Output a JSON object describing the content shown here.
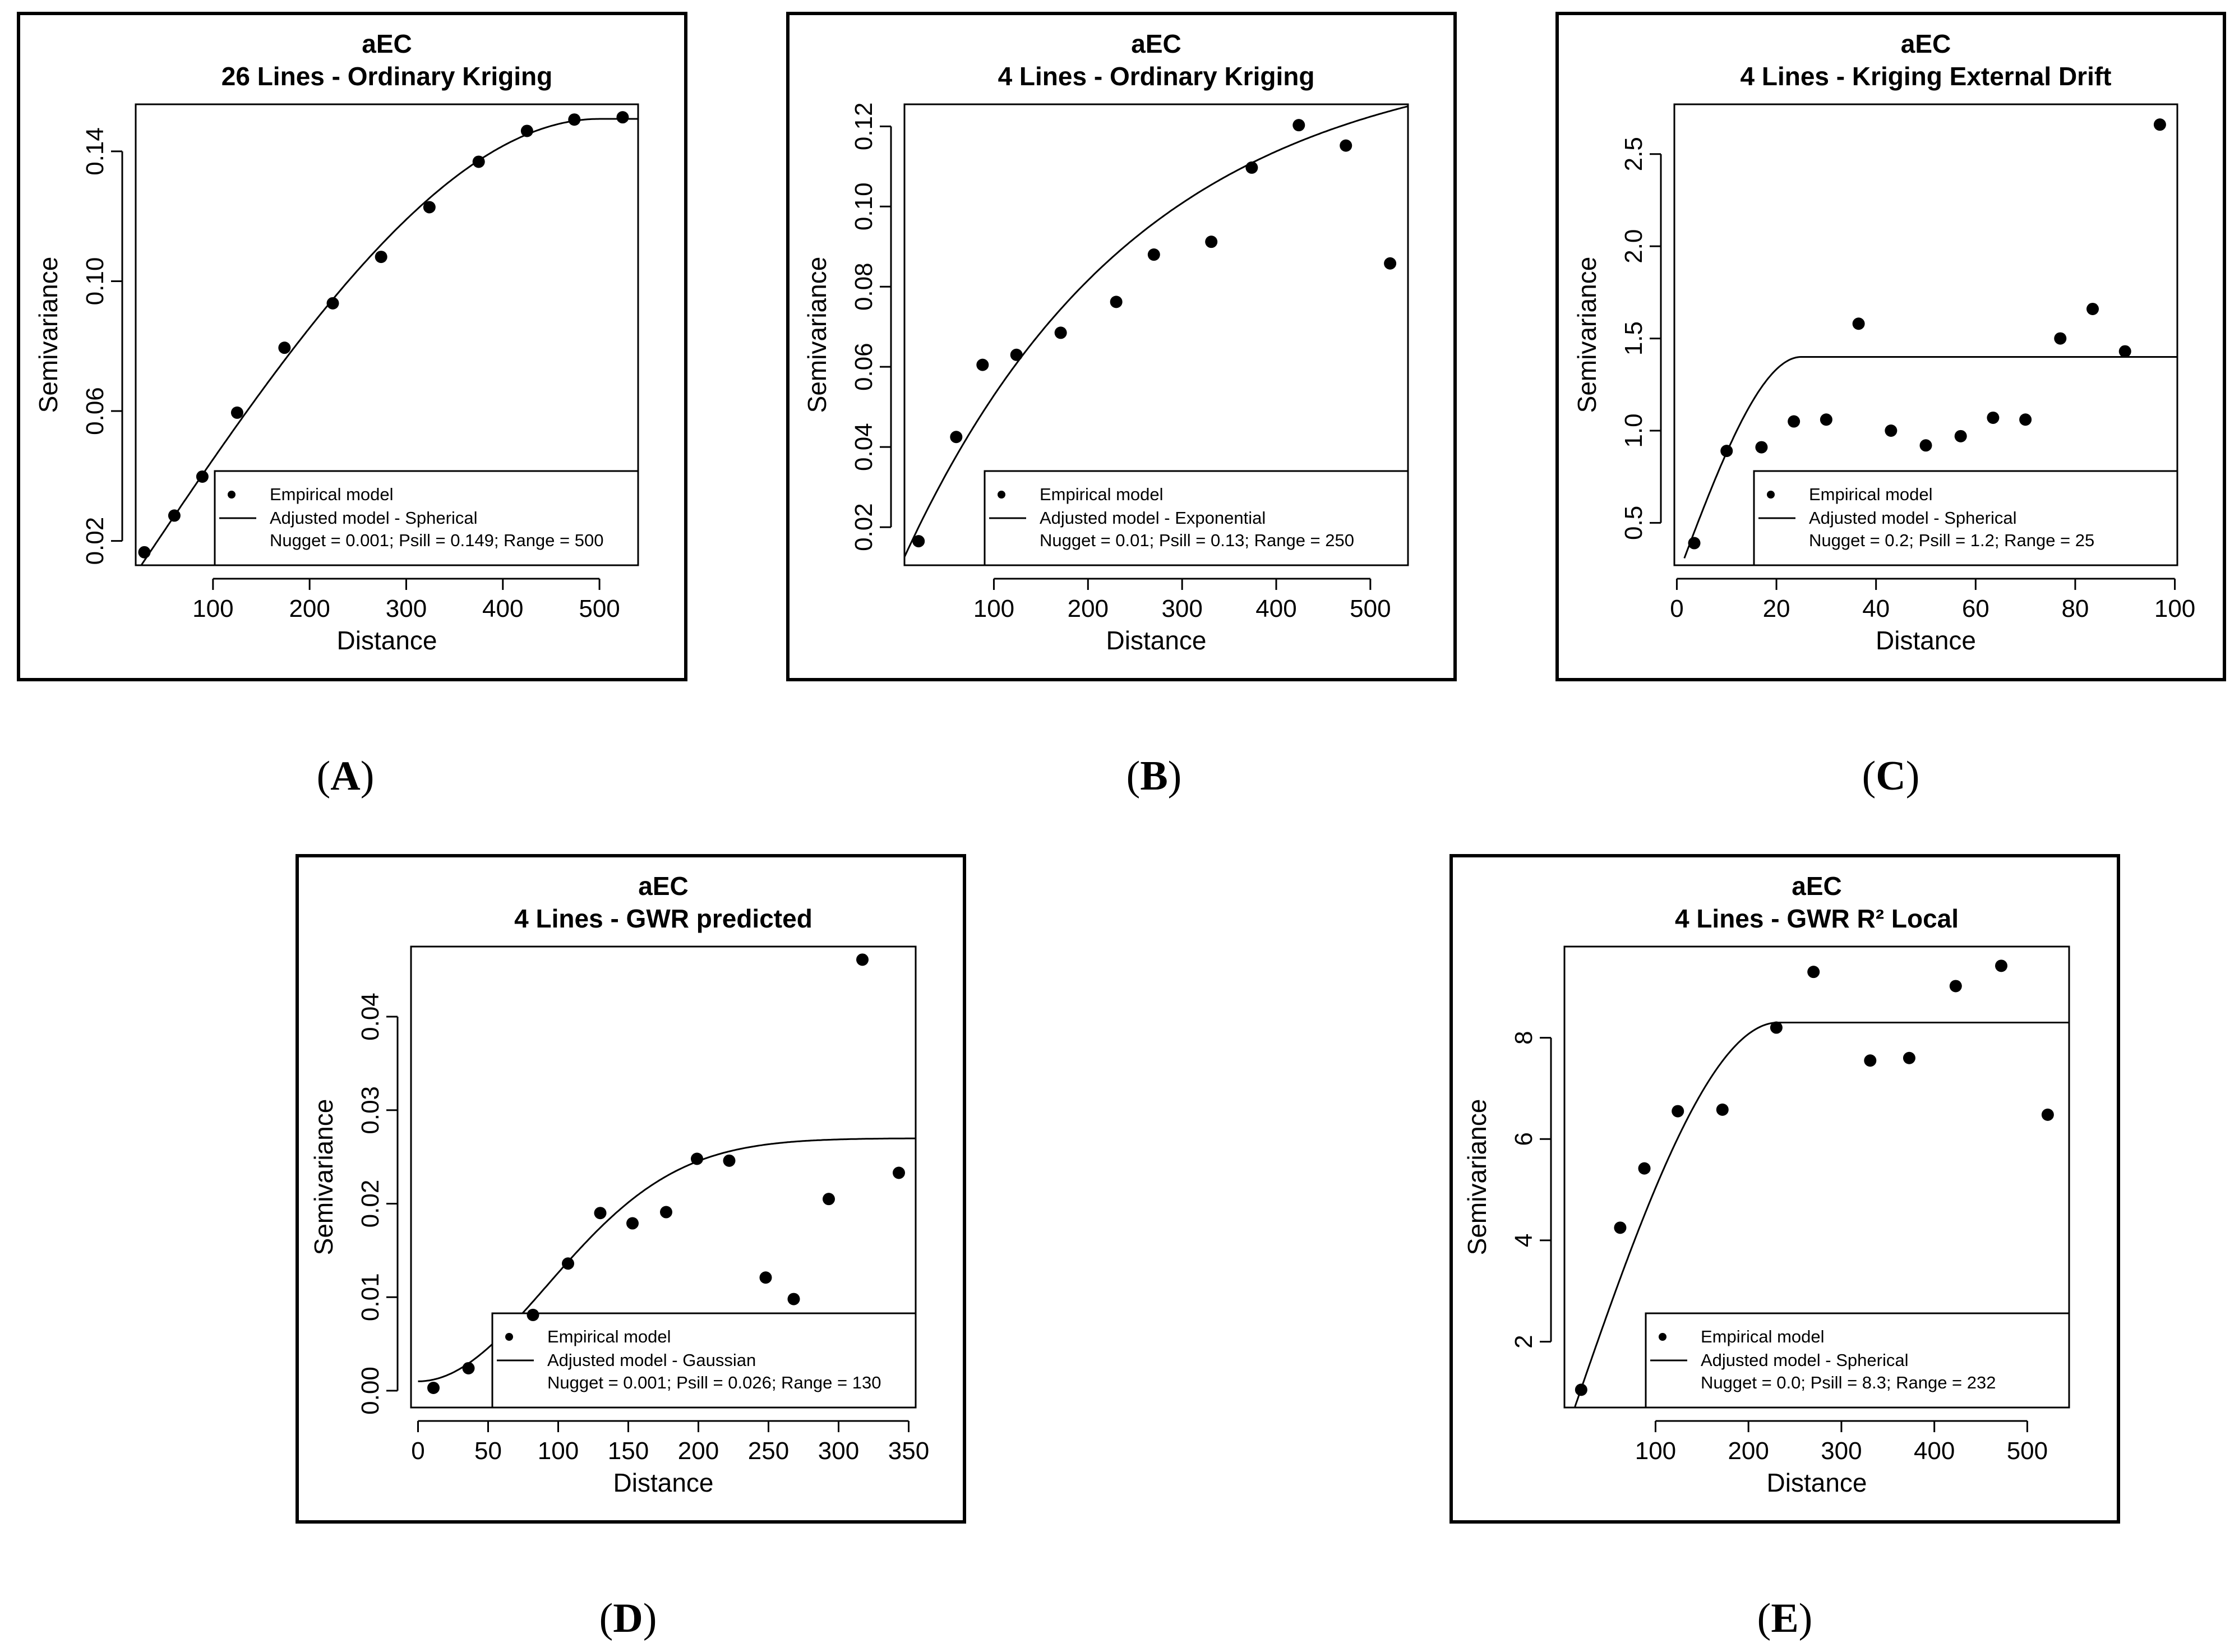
{
  "figure": {
    "background": "#ffffff",
    "ink": "#000000"
  },
  "chart_data": [
    {
      "id": "A",
      "caption_letter": "A",
      "type": "scatter",
      "title": "aEC",
      "subtitle": "26 Lines - Ordinary Kriging",
      "xlabel": "Distance",
      "ylabel": "Semivariance",
      "xlim": [
        20,
        540
      ],
      "ylim": [
        0.0125,
        0.1545
      ],
      "xticks": [
        100,
        200,
        300,
        400,
        500
      ],
      "xtick_labels": [
        "100",
        "200",
        "300",
        "400",
        "500"
      ],
      "yticks": [
        0.02,
        0.06,
        0.1,
        0.14
      ],
      "ytick_labels": [
        "0.02",
        "0.06",
        "0.10",
        "0.14"
      ],
      "legend": {
        "position": "bottom-right",
        "empirical": "Empirical model",
        "adjusted": "Adjusted model - Spherical",
        "params": "Nugget =  0.001; Psill = 0.149; Range = 500"
      },
      "model": {
        "kind": "spherical",
        "nugget": 0.001,
        "psill": 0.149,
        "range": 500,
        "x_from": 20,
        "x_to": 540
      },
      "points": [
        [
          29,
          0.0165
        ],
        [
          60,
          0.0278
        ],
        [
          89,
          0.0398
        ],
        [
          125,
          0.0595
        ],
        [
          174,
          0.0795
        ],
        [
          224,
          0.0932
        ],
        [
          274,
          0.1075
        ],
        [
          324,
          0.1228
        ],
        [
          375,
          0.1368
        ],
        [
          425,
          0.1463
        ],
        [
          474,
          0.1498
        ],
        [
          524,
          0.1505
        ]
      ]
    },
    {
      "id": "B",
      "caption_letter": "B",
      "type": "scatter",
      "title": "aEC",
      "subtitle": "4 Lines - Ordinary Kriging",
      "xlabel": "Distance",
      "ylabel": "Semivariance",
      "xlim": [
        5,
        540
      ],
      "ylim": [
        0.0105,
        0.1255
      ],
      "xticks": [
        100,
        200,
        300,
        400,
        500
      ],
      "xtick_labels": [
        "100",
        "200",
        "300",
        "400",
        "500"
      ],
      "yticks": [
        0.02,
        0.04,
        0.06,
        0.08,
        0.1,
        0.12
      ],
      "ytick_labels": [
        "0.02",
        "0.04",
        "0.06",
        "0.08",
        "0.10",
        "0.12"
      ],
      "legend": {
        "position": "bottom-right",
        "empirical": "Empirical model",
        "adjusted": "Adjusted model - Exponential",
        "params": "Nugget =  0.01; Psill = 0.13; Range = 250"
      },
      "model": {
        "kind": "exponential",
        "nugget": 0.01,
        "psill": 0.13,
        "range": 250,
        "x_from": 5,
        "x_to": 540
      },
      "points": [
        [
          20,
          0.0165
        ],
        [
          60,
          0.0425
        ],
        [
          88,
          0.0605
        ],
        [
          124,
          0.063
        ],
        [
          171,
          0.0685
        ],
        [
          230,
          0.0762
        ],
        [
          270,
          0.088
        ],
        [
          331,
          0.0912
        ],
        [
          374,
          0.1097
        ],
        [
          424,
          0.1203
        ],
        [
          474,
          0.1152
        ],
        [
          521,
          0.0858
        ]
      ]
    },
    {
      "id": "C",
      "caption_letter": "C",
      "type": "scatter",
      "title": "aEC",
      "subtitle": "4 Lines - Kriging External Drift",
      "xlabel": "Distance",
      "ylabel": "Semivariance",
      "xlim": [
        -0.5,
        100.5
      ],
      "ylim": [
        0.27,
        2.77
      ],
      "xticks": [
        0,
        20,
        40,
        60,
        80,
        100
      ],
      "xtick_labels": [
        "0",
        "20",
        "40",
        "60",
        "80",
        "100"
      ],
      "yticks": [
        0.5,
        1.0,
        1.5,
        2.0,
        2.5
      ],
      "ytick_labels": [
        "0.5",
        "1.0",
        "1.5",
        "2.0",
        "2.5"
      ],
      "legend": {
        "position": "bottom-right",
        "empirical": "Empirical model",
        "adjusted": "Adjusted model - Spherical",
        "params": "Nugget =  0.2; Psill = 1.2; Range = 25"
      },
      "model": {
        "kind": "spherical",
        "nugget": 0.2,
        "psill": 1.2,
        "range": 25,
        "x_from": 1.5,
        "x_to": 100.5
      },
      "points": [
        [
          3.5,
          0.39
        ],
        [
          10,
          0.89
        ],
        [
          17,
          0.91
        ],
        [
          23.5,
          1.05
        ],
        [
          30,
          1.06
        ],
        [
          36.5,
          1.58
        ],
        [
          43,
          1.0
        ],
        [
          50,
          0.92
        ],
        [
          57,
          0.97
        ],
        [
          63.5,
          1.07
        ],
        [
          70,
          1.06
        ],
        [
          77,
          1.5
        ],
        [
          83.5,
          1.66
        ],
        [
          90,
          1.43
        ],
        [
          97,
          2.66
        ]
      ]
    },
    {
      "id": "D",
      "caption_letter": "D",
      "type": "scatter",
      "title": "aEC",
      "subtitle": "4 Lines - GWR predicted",
      "xlabel": "Distance",
      "ylabel": "Semivariance",
      "xlim": [
        -5,
        355
      ],
      "ylim": [
        -0.0018,
        0.0475
      ],
      "xticks": [
        0,
        50,
        100,
        150,
        200,
        250,
        300,
        350
      ],
      "xtick_labels": [
        "0",
        "50",
        "100",
        "150",
        "200",
        "250",
        "300",
        "350"
      ],
      "yticks": [
        0.0,
        0.01,
        0.02,
        0.03,
        0.04
      ],
      "ytick_labels": [
        "0.00",
        "0.01",
        "0.02",
        "0.03",
        "0.04"
      ],
      "legend": {
        "position": "bottom-right",
        "empirical": "Empirical model",
        "adjusted": "Adjusted model - Gaussian",
        "params": "Nugget =  0.001; Psill = 0.026; Range = 130"
      },
      "model": {
        "kind": "gaussian",
        "nugget": 0.001,
        "psill": 0.026,
        "range": 130,
        "x_from": 0,
        "x_to": 355
      },
      "points": [
        [
          11,
          0.0003
        ],
        [
          36,
          0.0024
        ],
        [
          82,
          0.0081
        ],
        [
          107,
          0.0136
        ],
        [
          130,
          0.019
        ],
        [
          153,
          0.0179
        ],
        [
          177,
          0.0191
        ],
        [
          199,
          0.0248
        ],
        [
          222,
          0.0246
        ],
        [
          248,
          0.0121
        ],
        [
          268,
          0.0098
        ],
        [
          293,
          0.0205
        ],
        [
          317,
          0.0461
        ],
        [
          343,
          0.0233
        ]
      ]
    },
    {
      "id": "E",
      "caption_letter": "E",
      "type": "scatter",
      "title": "aEC",
      "subtitle": "4 Lines - GWR R² Local",
      "xlabel": "Distance",
      "ylabel": "Semivariance",
      "xlim": [
        2,
        545
      ],
      "ylim": [
        0.7,
        9.8
      ],
      "xticks": [
        100,
        200,
        300,
        400,
        500
      ],
      "xtick_labels": [
        "100",
        "200",
        "300",
        "400",
        "500"
      ],
      "yticks": [
        2,
        4,
        6,
        8
      ],
      "ytick_labels": [
        "2",
        "4",
        "6",
        "8"
      ],
      "legend": {
        "position": "bottom-right",
        "empirical": "Empirical model",
        "adjusted": "Adjusted model - Spherical",
        "params": "Nugget =  0.0; Psill = 8.3; Range = 232"
      },
      "model": {
        "kind": "spherical",
        "nugget": 0.0,
        "psill": 8.3,
        "range": 232,
        "x_from": 11,
        "x_to": 545
      },
      "points": [
        [
          20,
          1.05
        ],
        [
          62,
          4.25
        ],
        [
          88,
          5.42
        ],
        [
          124,
          6.55
        ],
        [
          172,
          6.58
        ],
        [
          230,
          8.2
        ],
        [
          270,
          9.3
        ],
        [
          331,
          7.55
        ],
        [
          373,
          7.6
        ],
        [
          423,
          9.02
        ],
        [
          472,
          9.42
        ],
        [
          522,
          6.48
        ]
      ]
    }
  ]
}
